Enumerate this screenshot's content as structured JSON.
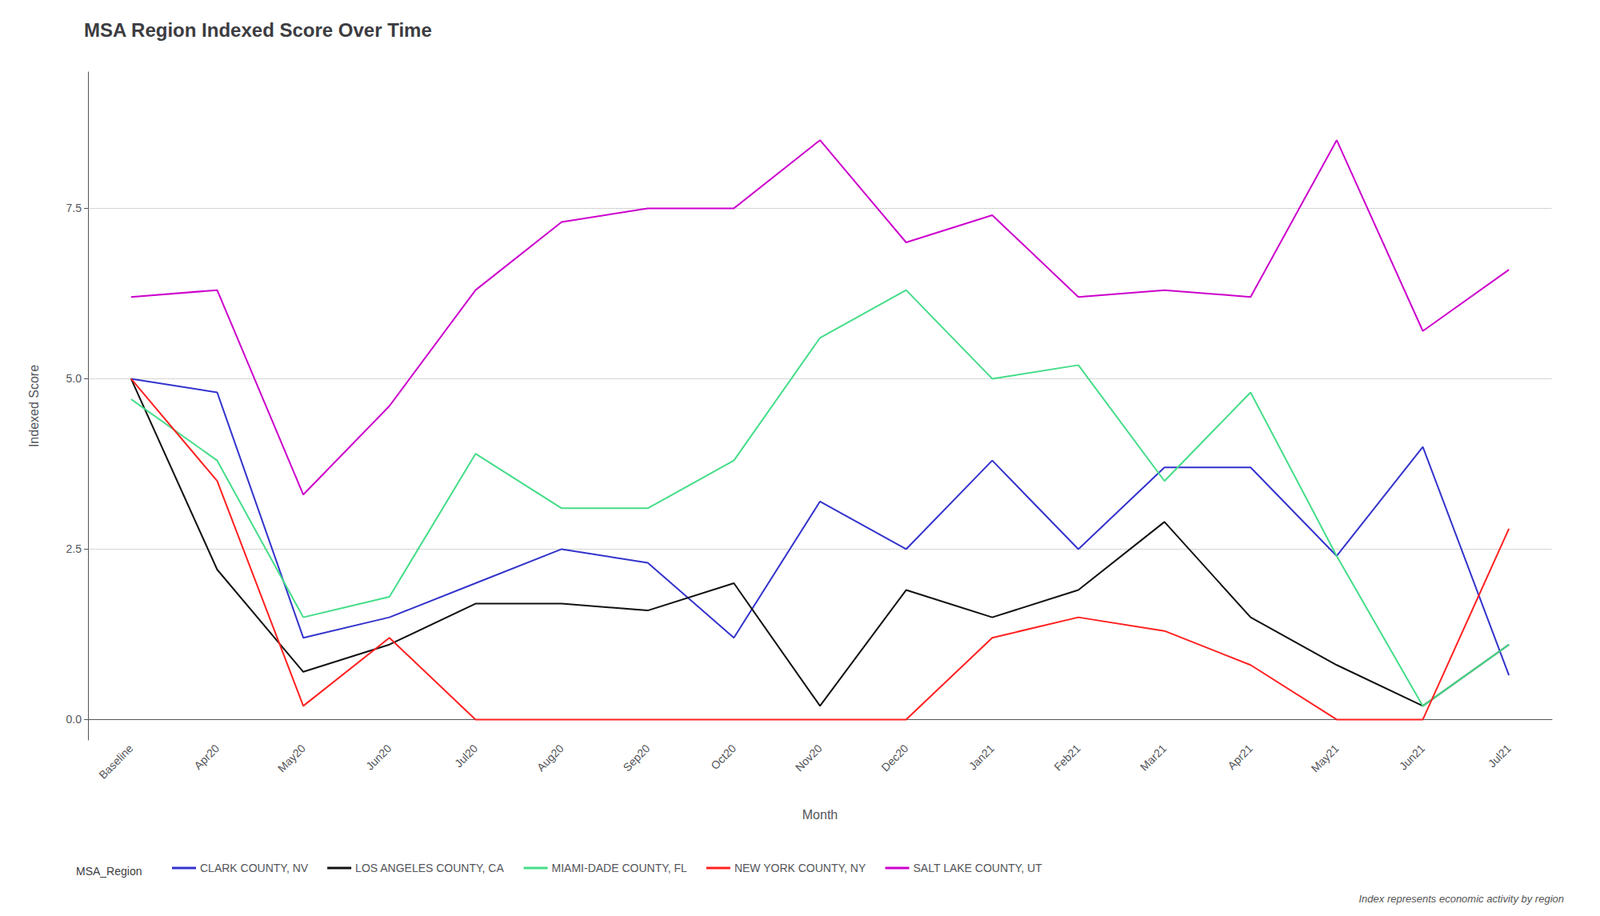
{
  "chart_data": {
    "type": "line",
    "title": "MSA Region Indexed Score Over Time",
    "x_label": "Month",
    "y_label": "Indexed Score",
    "footnote": "Index represents economic activity by region",
    "legend_title": "MSA_Region",
    "categories": [
      "Baseline",
      "Apr20",
      "May20",
      "Jun20",
      "Jul20",
      "Aug20",
      "Sep20",
      "Oct20",
      "Nov20",
      "Dec20",
      "Jan21",
      "Feb21",
      "Mar21",
      "Apr21",
      "May21",
      "Jun21",
      "Jul21"
    ],
    "series": [
      {
        "name": "CLARK COUNTY, NV",
        "color": "#3333cc",
        "values": [
          5.0,
          4.8,
          1.2,
          1.5,
          2.0,
          2.5,
          2.3,
          1.2,
          3.2,
          2.5,
          3.8,
          2.5,
          3.7,
          3.7,
          2.4,
          4.0,
          0.65
        ]
      },
      {
        "name": "LOS ANGELES COUNTY, CA",
        "color": "#111111",
        "values": [
          5.0,
          2.2,
          0.7,
          1.1,
          1.7,
          1.7,
          1.6,
          2.0,
          0.2,
          1.9,
          1.5,
          1.9,
          2.9,
          1.5,
          0.8,
          0.2,
          1.1
        ]
      },
      {
        "name": "MIAMI-DADE COUNTY, FL",
        "color": "#44dd88",
        "values": [
          4.7,
          3.8,
          1.5,
          1.8,
          3.9,
          3.1,
          3.1,
          3.8,
          5.6,
          6.3,
          5.0,
          5.2,
          3.5,
          4.8,
          2.4,
          0.2,
          1.1
        ]
      },
      {
        "name": "NEW YORK COUNTY, NY",
        "color": "#ff2020",
        "values": [
          5.0,
          3.5,
          0.2,
          1.2,
          0.0,
          0.0,
          0.0,
          0.0,
          0.0,
          0.0,
          1.2,
          1.5,
          1.3,
          0.8,
          0.0,
          0.0,
          2.8
        ]
      },
      {
        "name": "SALT LAKE COUNTY, UT",
        "color": "#cc00cc",
        "values": [
          6.2,
          6.3,
          3.3,
          4.6,
          6.3,
          7.3,
          7.5,
          7.5,
          8.5,
          7.0,
          7.4,
          6.2,
          6.3,
          6.2,
          8.5,
          5.7,
          6.6
        ]
      }
    ],
    "ylim": [
      -0.3,
      9.5
    ],
    "yticks": [
      {
        "value": 0,
        "label": "0.0"
      },
      2.5,
      {
        "value": 5,
        "label": "5.0"
      },
      7.5
    ],
    "grid": true,
    "legend": "bottom"
  }
}
